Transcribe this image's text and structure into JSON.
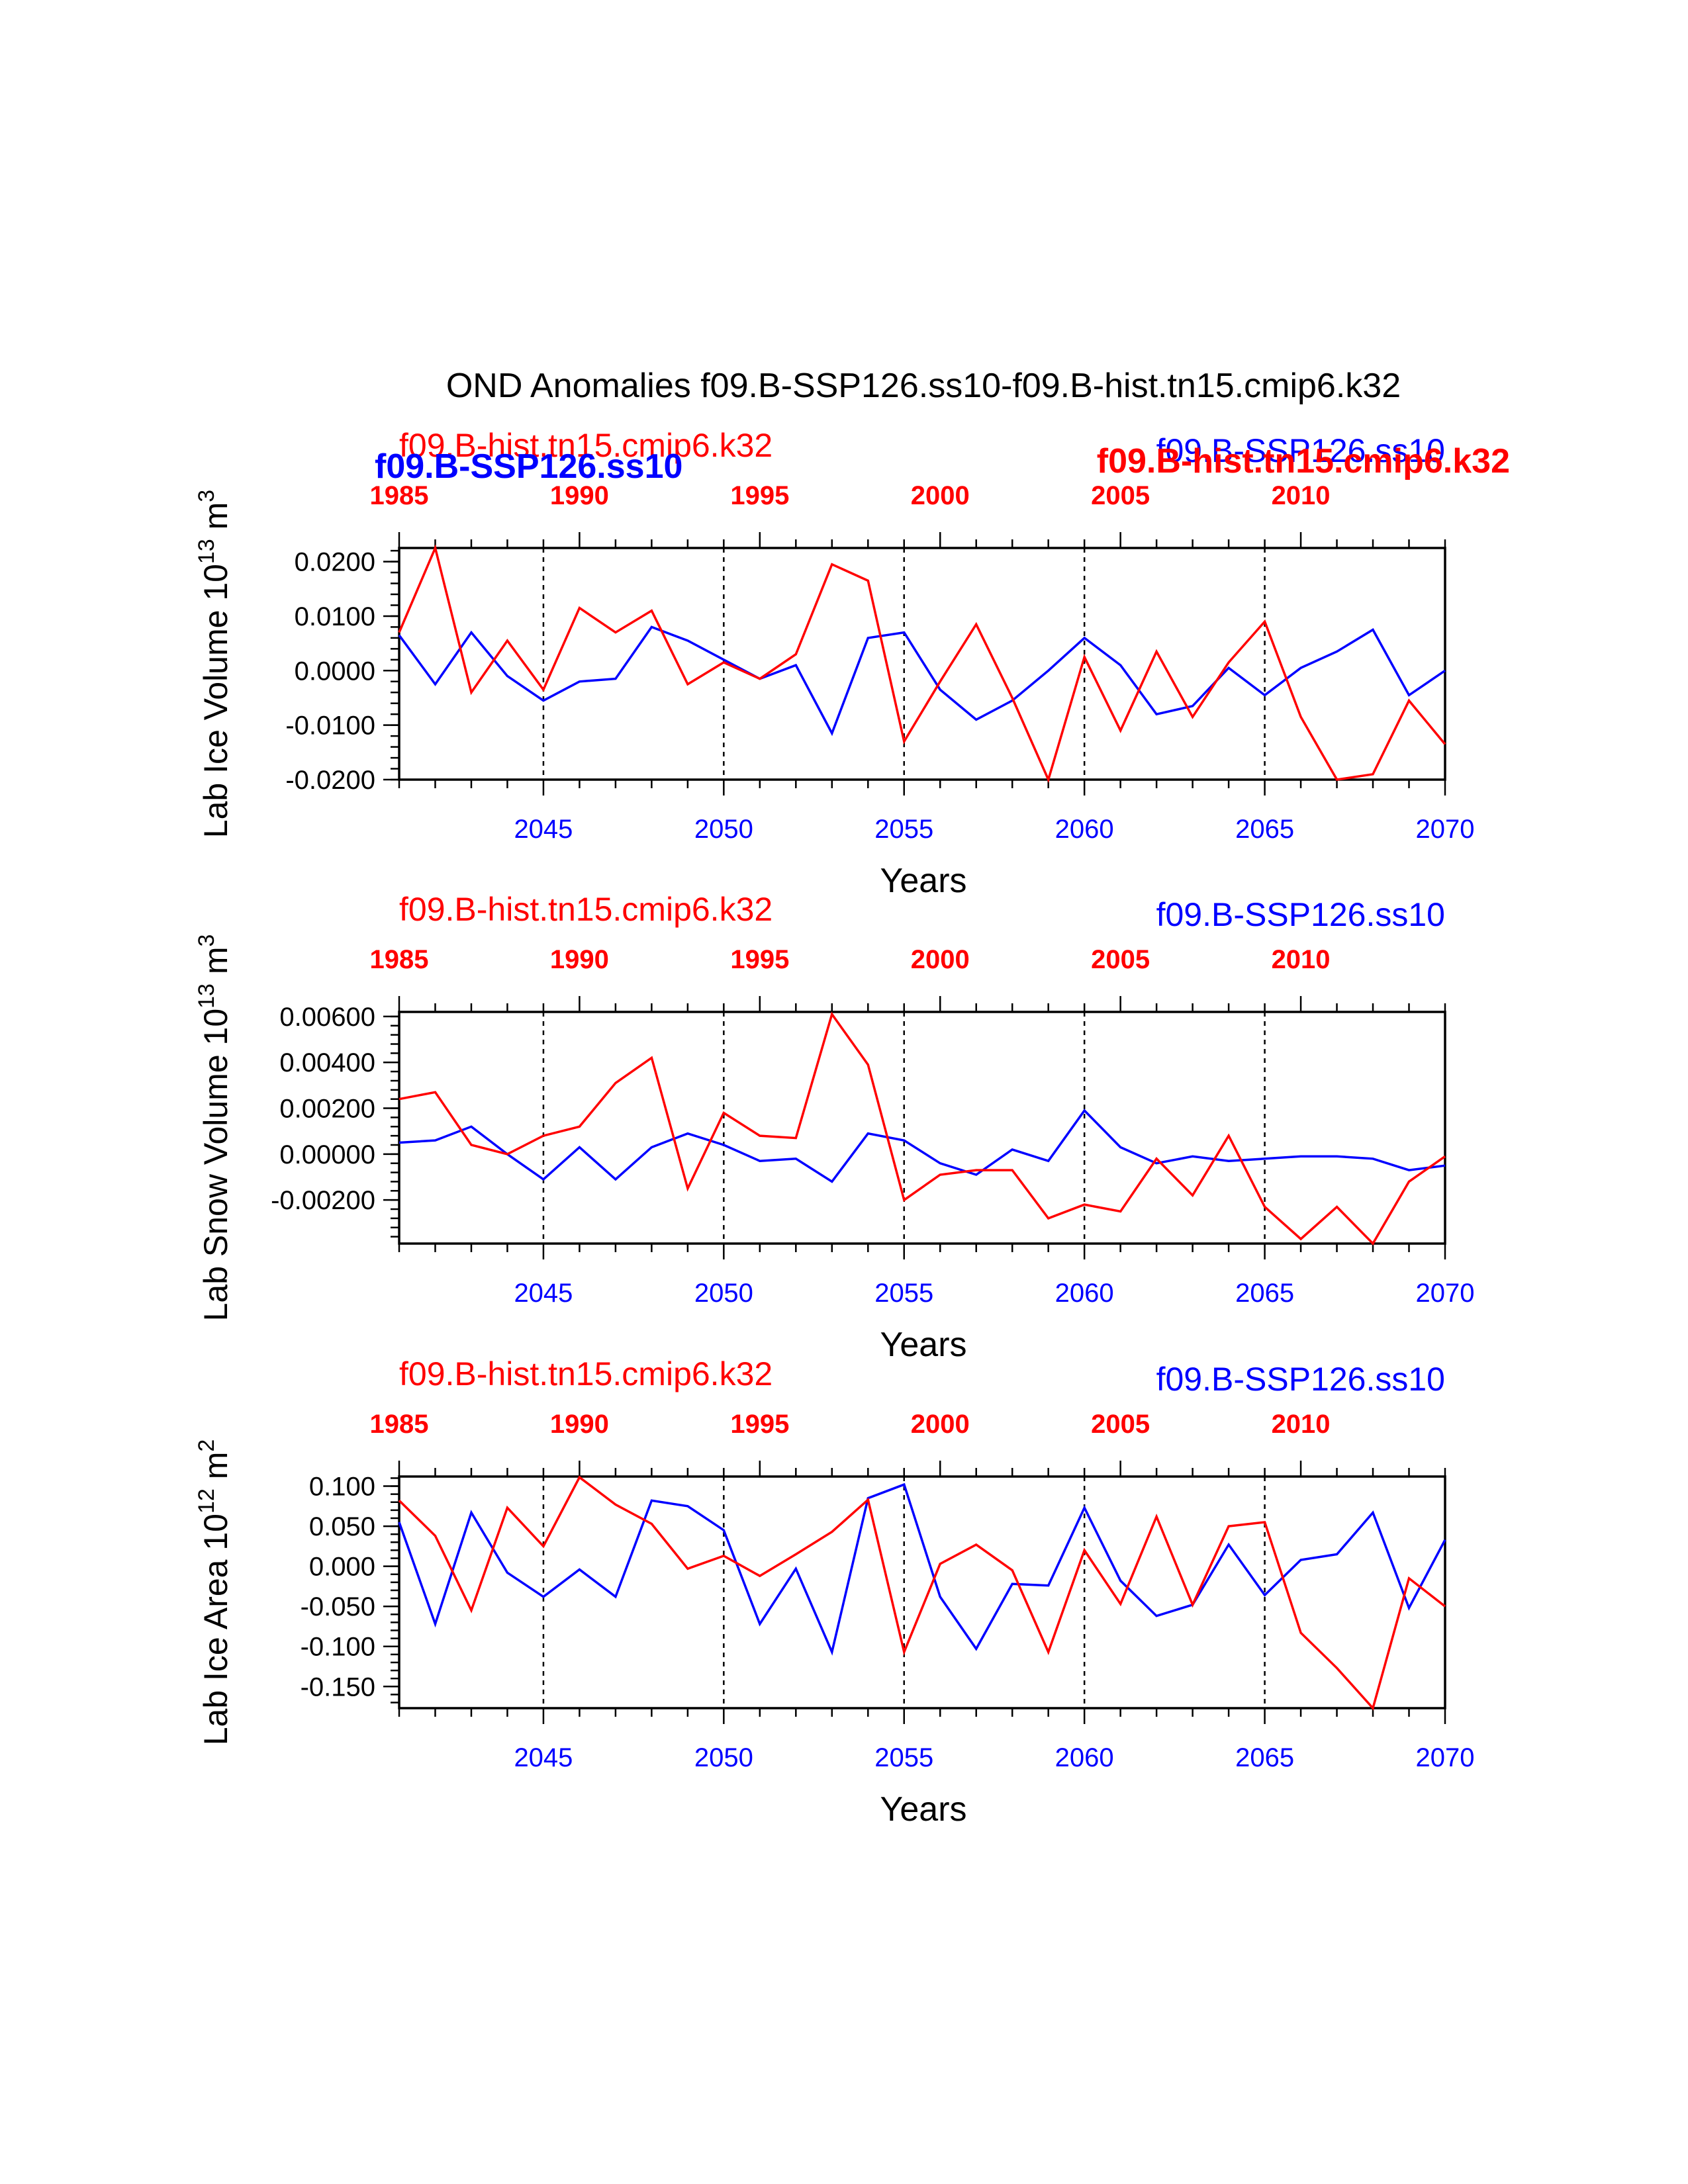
{
  "figure": {
    "title": "OND Anomalies f09.B-SSP126.ss10-f09.B-hist.tn15.cmip6.k32",
    "overlap_labels": {
      "left_blue": "f09.B-SSP126.ss10",
      "right_red": "f09.B-hist.tn15.cmip6.k32"
    }
  },
  "colors": {
    "ssp126": "#0000ff",
    "hist": "#ff0000",
    "axis": "#000000"
  },
  "chart_data": [
    {
      "type": "line",
      "title": "",
      "ylabel_main": "Lab Ice Volume 10",
      "ylabel_exp": "13",
      "ylabel_unit": " m",
      "ylabel_unit_exp": "3",
      "xlabel": "Years",
      "series_label_top_left": "f09.B-hist.tn15.cmip6.k32",
      "series_label_top_right": "f09.B-SSP126.ss10",
      "ylim": [
        -0.02,
        0.0225
      ],
      "yticks": [
        0.02,
        0.01,
        0.0,
        -0.01,
        -0.02
      ],
      "ytick_labels": [
        "0.0200",
        "0.0100",
        "0.0000",
        "-0.0100",
        "-0.0200"
      ],
      "yminor_step": 0.002,
      "x_bottom": [
        2041,
        2042,
        2043,
        2044,
        2045,
        2046,
        2047,
        2048,
        2049,
        2050,
        2051,
        2052,
        2053,
        2054,
        2055,
        2056,
        2057,
        2058,
        2059,
        2060,
        2061,
        2062,
        2063,
        2064,
        2065,
        2066,
        2067,
        2068,
        2069,
        2070
      ],
      "x_bottom_ticks": [
        2045,
        2050,
        2055,
        2060,
        2065,
        2070
      ],
      "x_top_ticks": [
        1985,
        1990,
        1995,
        2000,
        2005,
        2010
      ],
      "series": [
        {
          "name": "f09.B-SSP126.ss10",
          "color": "#0000ff",
          "values": [
            0.0065,
            -0.0025,
            0.007,
            -0.001,
            -0.0055,
            -0.002,
            -0.0015,
            0.008,
            0.0055,
            0.002,
            -0.0015,
            0.001,
            -0.0115,
            0.006,
            0.007,
            -0.0035,
            -0.009,
            -0.0055,
            0.0,
            0.006,
            0.001,
            -0.008,
            -0.0065,
            0.0005,
            -0.0045,
            0.0005,
            0.0035,
            0.0075,
            -0.0045,
            0.0
          ]
        },
        {
          "name": "f09.B-hist.tn15.cmip6.k32",
          "color": "#ff0000",
          "values": [
            0.007,
            0.0225,
            -0.004,
            0.0055,
            -0.0035,
            0.0115,
            0.007,
            0.011,
            -0.0025,
            0.0015,
            -0.0015,
            0.003,
            0.0195,
            0.0165,
            -0.013,
            -0.002,
            0.0085,
            -0.005,
            -0.02,
            0.0025,
            -0.011,
            0.0035,
            -0.0085,
            0.0015,
            0.009,
            -0.0085,
            -0.02,
            -0.019,
            -0.0055,
            -0.0135
          ]
        }
      ]
    },
    {
      "type": "line",
      "title": "",
      "ylabel_main": "Lab Snow Volume 10",
      "ylabel_exp": "13",
      "ylabel_unit": " m",
      "ylabel_unit_exp": "3",
      "xlabel": "Years",
      "series_label_top_left": "f09.B-hist.tn15.cmip6.k32",
      "series_label_top_right": "f09.B-SSP126.ss10",
      "ylim": [
        -0.0039,
        0.0062
      ],
      "yticks": [
        0.006,
        0.004,
        0.002,
        0.0,
        -0.002
      ],
      "ytick_labels": [
        "0.00600",
        "0.00400",
        "0.00200",
        "0.00000",
        "-0.00200"
      ],
      "yminor_step": 0.0004,
      "x_bottom": [
        2041,
        2042,
        2043,
        2044,
        2045,
        2046,
        2047,
        2048,
        2049,
        2050,
        2051,
        2052,
        2053,
        2054,
        2055,
        2056,
        2057,
        2058,
        2059,
        2060,
        2061,
        2062,
        2063,
        2064,
        2065,
        2066,
        2067,
        2068,
        2069,
        2070
      ],
      "x_bottom_ticks": [
        2045,
        2050,
        2055,
        2060,
        2065,
        2070
      ],
      "x_top_ticks": [
        1985,
        1990,
        1995,
        2000,
        2005,
        2010
      ],
      "series": [
        {
          "name": "f09.B-SSP126.ss10",
          "color": "#0000ff",
          "values": [
            0.0005,
            0.0006,
            0.0012,
            0.0,
            -0.0011,
            0.0003,
            -0.0011,
            0.0003,
            0.0009,
            0.0004,
            -0.0003,
            -0.0002,
            -0.0012,
            0.0009,
            0.0006,
            -0.0004,
            -0.0009,
            0.0002,
            -0.0003,
            0.0019,
            0.0003,
            -0.0004,
            -0.0001,
            -0.0003,
            -0.0002,
            -0.0001,
            -0.0001,
            -0.0002,
            -0.0007,
            -0.0005
          ]
        },
        {
          "name": "f09.B-hist.tn15.cmip6.k32",
          "color": "#ff0000",
          "values": [
            0.0024,
            0.0027,
            0.0004,
            0.0,
            0.0008,
            0.0012,
            0.0031,
            0.0042,
            -0.0015,
            0.0018,
            0.0008,
            0.0007,
            0.0061,
            0.0039,
            -0.002,
            -0.0009,
            -0.0007,
            -0.0007,
            -0.0028,
            -0.0022,
            -0.0025,
            -0.0002,
            -0.0018,
            0.0008,
            -0.0023,
            -0.0037,
            -0.0023,
            -0.0039,
            -0.0012,
            -0.0001
          ]
        }
      ]
    },
    {
      "type": "line",
      "title": "",
      "ylabel_main": "Lab Ice Area 10",
      "ylabel_exp": "12",
      "ylabel_unit": " m",
      "ylabel_unit_exp": "2",
      "xlabel": "Years",
      "series_label_top_left": "f09.B-hist.tn15.cmip6.k32",
      "series_label_top_right": "f09.B-SSP126.ss10",
      "ylim": [
        -0.177,
        0.112
      ],
      "yticks": [
        0.1,
        0.05,
        0.0,
        -0.05,
        -0.1,
        -0.15
      ],
      "ytick_labels": [
        "0.100",
        "0.050",
        "0.000",
        "-0.050",
        "-0.100",
        "-0.150"
      ],
      "yminor_step": 0.01,
      "x_bottom": [
        2041,
        2042,
        2043,
        2044,
        2045,
        2046,
        2047,
        2048,
        2049,
        2050,
        2051,
        2052,
        2053,
        2054,
        2055,
        2056,
        2057,
        2058,
        2059,
        2060,
        2061,
        2062,
        2063,
        2064,
        2065,
        2066,
        2067,
        2068,
        2069,
        2070
      ],
      "x_bottom_ticks": [
        2045,
        2050,
        2055,
        2060,
        2065,
        2070
      ],
      "x_top_ticks": [
        1985,
        1990,
        1995,
        2000,
        2005,
        2010
      ],
      "series": [
        {
          "name": "f09.B-SSP126.ss10",
          "color": "#0000ff",
          "values": [
            0.055,
            -0.072,
            0.067,
            -0.008,
            -0.038,
            -0.004,
            -0.038,
            0.082,
            0.075,
            0.045,
            -0.072,
            -0.003,
            -0.107,
            0.085,
            0.102,
            -0.038,
            -0.103,
            -0.022,
            -0.024,
            0.073,
            -0.018,
            -0.062,
            -0.048,
            0.027,
            -0.036,
            0.008,
            0.015,
            0.067,
            -0.052,
            0.033
          ]
        },
        {
          "name": "f09.B-hist.tn15.cmip6.k32",
          "color": "#ff0000",
          "values": [
            0.082,
            0.038,
            -0.055,
            0.073,
            0.025,
            0.111,
            0.077,
            0.053,
            -0.003,
            0.013,
            -0.012,
            0.015,
            0.043,
            0.083,
            -0.107,
            0.003,
            0.027,
            -0.005,
            -0.107,
            0.02,
            -0.047,
            0.062,
            -0.048,
            0.05,
            0.055,
            -0.083,
            -0.127,
            -0.177,
            -0.015,
            -0.05
          ]
        }
      ]
    }
  ]
}
